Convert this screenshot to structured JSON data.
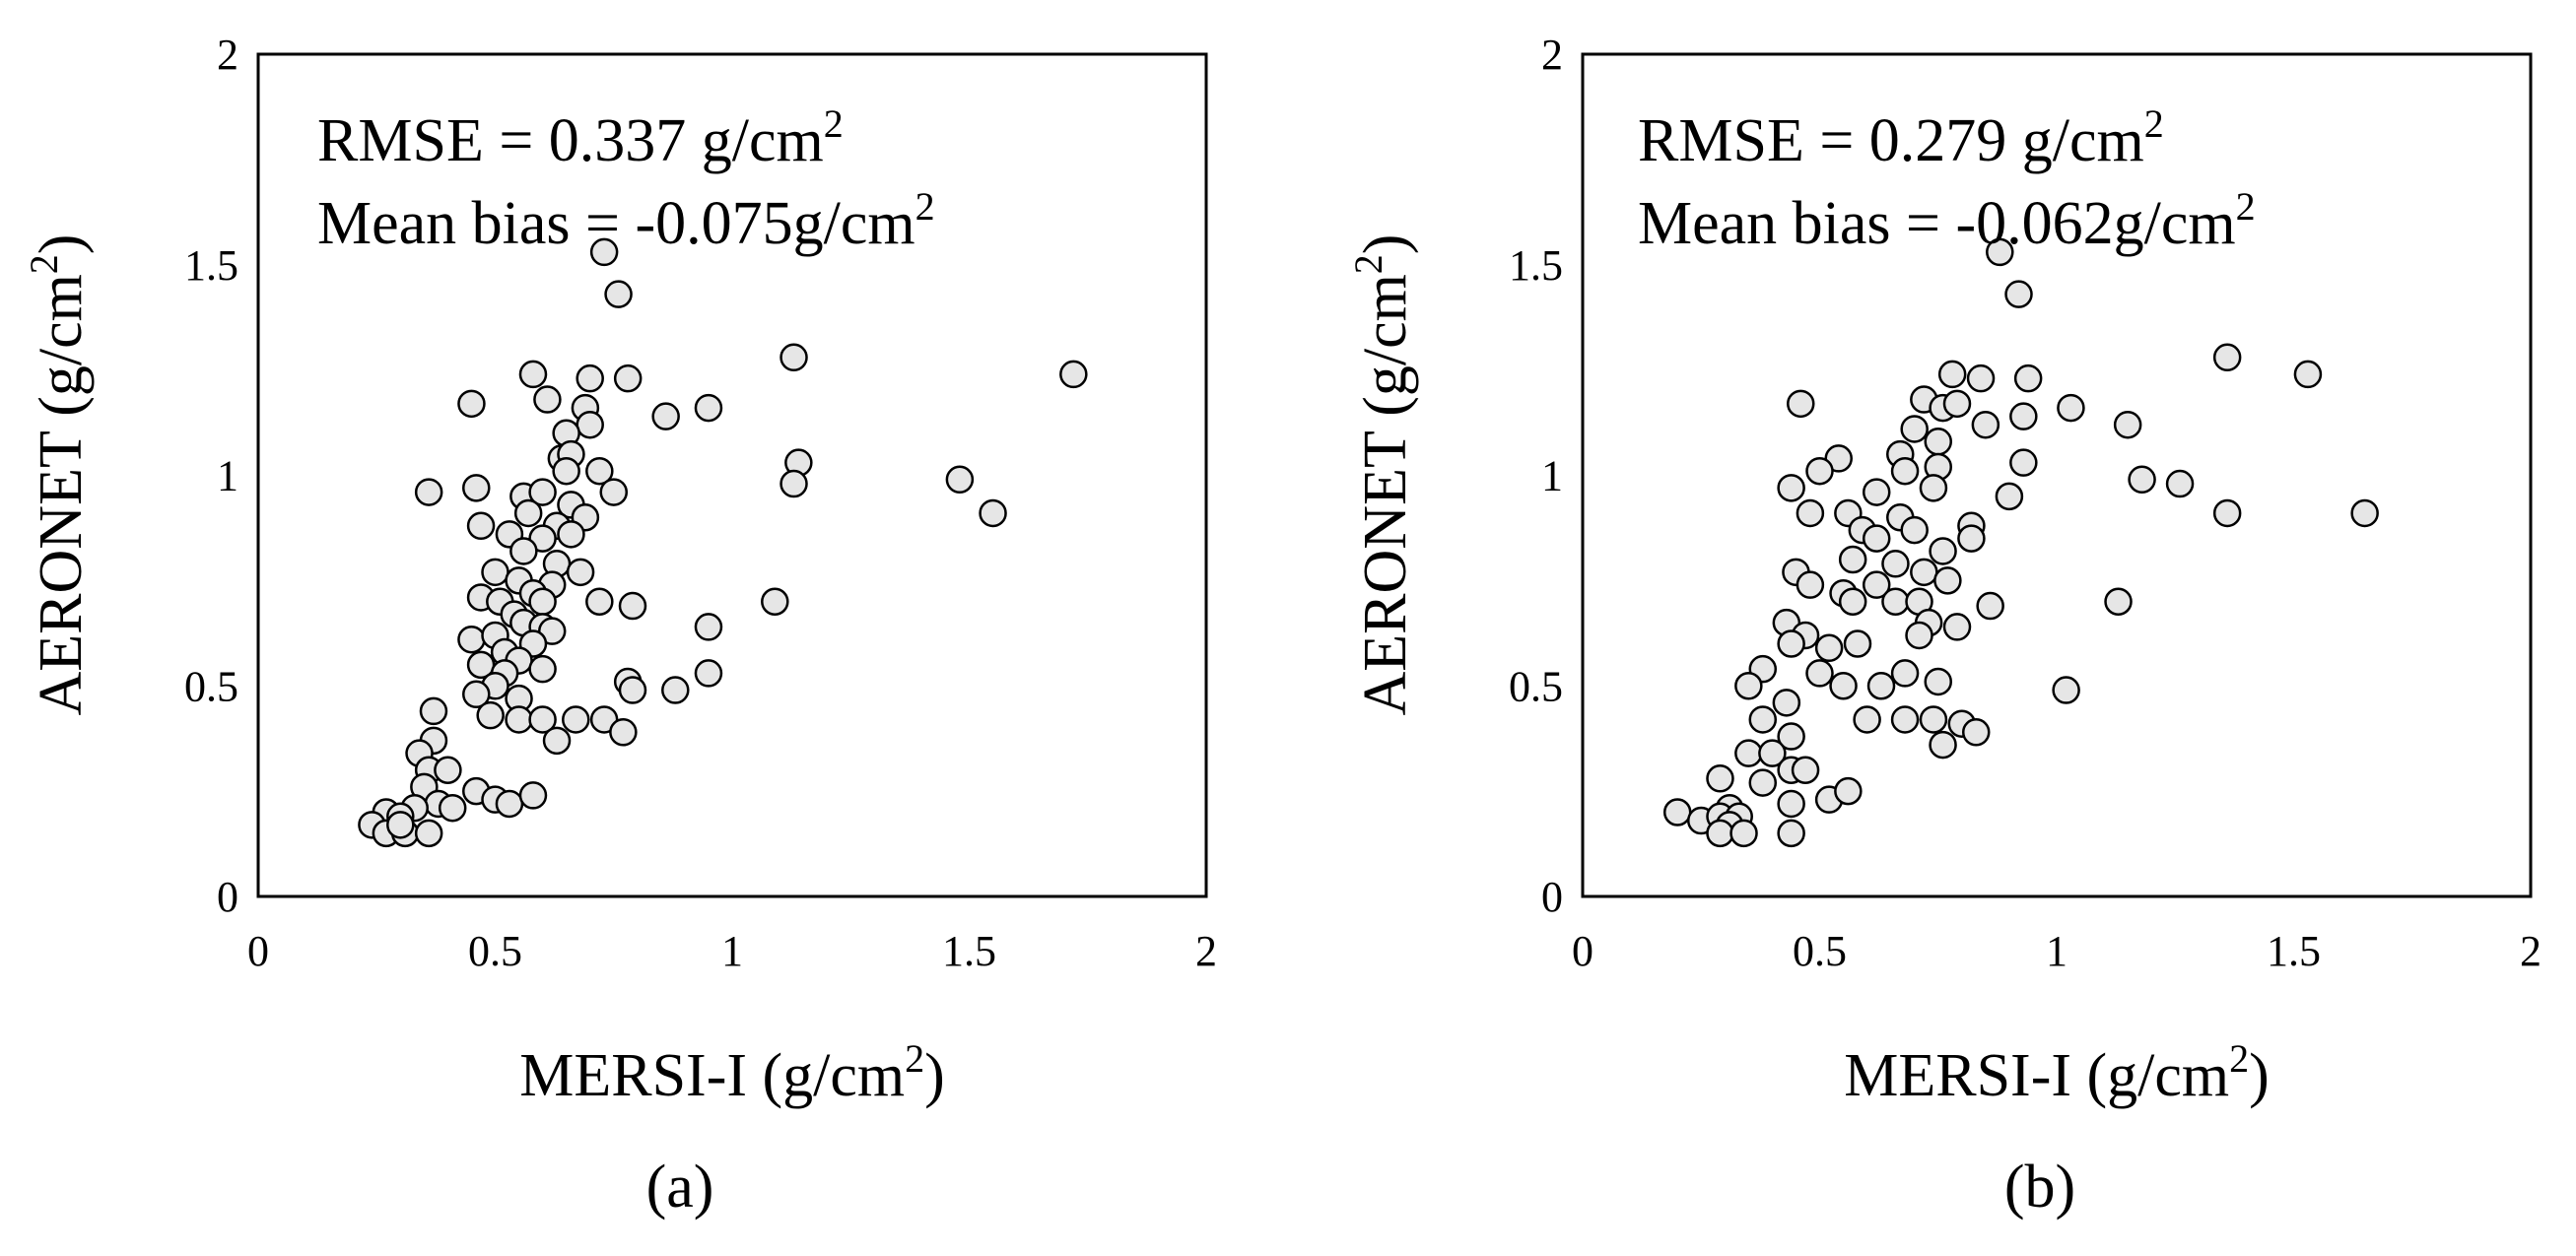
{
  "chart_data": [
    {
      "type": "scatter",
      "panel_label": "(a)",
      "annotations": {
        "rmse_text": "RMSE = 0.337 g/cm",
        "bias_text": "Mean bias = -0.075g/cm",
        "superscript": "2"
      },
      "xlabel": "MERSI-I (g/cm",
      "ylabel": "AERONET (g/cm",
      "label_close": ")",
      "label_sup": "2",
      "xlim": [
        0,
        2
      ],
      "ylim": [
        0,
        2
      ],
      "xticks": [
        0,
        0.5,
        1,
        1.5,
        2
      ],
      "yticks": [
        0,
        0.5,
        1,
        1.5,
        2
      ],
      "xtick_labels": [
        "0",
        "0.5",
        "1",
        "1.5",
        "2"
      ],
      "ytick_labels": [
        "0",
        "0.5",
        "1",
        "1.5",
        "2"
      ],
      "grid": false,
      "marker_fill": "#e6e6e6",
      "marker_edge": "#000000",
      "points": [
        [
          0.73,
          1.53
        ],
        [
          0.76,
          1.43
        ],
        [
          0.58,
          1.24
        ],
        [
          0.7,
          1.23
        ],
        [
          0.78,
          1.23
        ],
        [
          1.72,
          1.24
        ],
        [
          1.13,
          1.28
        ],
        [
          0.45,
          1.17
        ],
        [
          0.61,
          1.18
        ],
        [
          0.69,
          1.16
        ],
        [
          0.95,
          1.16
        ],
        [
          0.86,
          1.14
        ],
        [
          0.7,
          1.12
        ],
        [
          0.65,
          1.1
        ],
        [
          0.64,
          1.04
        ],
        [
          1.14,
          1.03
        ],
        [
          0.66,
          1.05
        ],
        [
          0.72,
          1.01
        ],
        [
          0.65,
          1.01
        ],
        [
          1.13,
          0.98
        ],
        [
          1.48,
          0.99
        ],
        [
          0.36,
          0.96
        ],
        [
          0.46,
          0.97
        ],
        [
          0.56,
          0.95
        ],
        [
          0.6,
          0.96
        ],
        [
          0.75,
          0.96
        ],
        [
          0.66,
          0.93
        ],
        [
          1.55,
          0.91
        ],
        [
          0.57,
          0.91
        ],
        [
          0.69,
          0.9
        ],
        [
          0.47,
          0.88
        ],
        [
          0.63,
          0.88
        ],
        [
          0.53,
          0.86
        ],
        [
          0.6,
          0.85
        ],
        [
          0.66,
          0.86
        ],
        [
          0.56,
          0.82
        ],
        [
          0.63,
          0.79
        ],
        [
          0.5,
          0.77
        ],
        [
          0.55,
          0.75
        ],
        [
          0.68,
          0.77
        ],
        [
          0.62,
          0.74
        ],
        [
          0.58,
          0.72
        ],
        [
          0.47,
          0.71
        ],
        [
          0.51,
          0.7
        ],
        [
          0.6,
          0.7
        ],
        [
          0.72,
          0.7
        ],
        [
          0.79,
          0.69
        ],
        [
          1.09,
          0.7
        ],
        [
          0.54,
          0.67
        ],
        [
          0.56,
          0.65
        ],
        [
          0.6,
          0.64
        ],
        [
          0.62,
          0.63
        ],
        [
          0.95,
          0.64
        ],
        [
          0.45,
          0.61
        ],
        [
          0.5,
          0.62
        ],
        [
          0.58,
          0.6
        ],
        [
          0.52,
          0.58
        ],
        [
          0.55,
          0.56
        ],
        [
          0.47,
          0.55
        ],
        [
          0.6,
          0.54
        ],
        [
          0.52,
          0.53
        ],
        [
          0.95,
          0.53
        ],
        [
          0.78,
          0.51
        ],
        [
          0.79,
          0.49
        ],
        [
          0.88,
          0.49
        ],
        [
          0.5,
          0.5
        ],
        [
          0.46,
          0.48
        ],
        [
          0.55,
          0.47
        ],
        [
          0.49,
          0.43
        ],
        [
          0.55,
          0.42
        ],
        [
          0.6,
          0.42
        ],
        [
          0.67,
          0.42
        ],
        [
          0.73,
          0.42
        ],
        [
          0.77,
          0.39
        ],
        [
          0.63,
          0.37
        ],
        [
          0.37,
          0.44
        ],
        [
          0.37,
          0.37
        ],
        [
          0.34,
          0.34
        ],
        [
          0.36,
          0.3
        ],
        [
          0.4,
          0.3
        ],
        [
          0.35,
          0.26
        ],
        [
          0.46,
          0.25
        ],
        [
          0.38,
          0.22
        ],
        [
          0.41,
          0.21
        ],
        [
          0.5,
          0.23
        ],
        [
          0.53,
          0.22
        ],
        [
          0.58,
          0.24
        ],
        [
          0.33,
          0.21
        ],
        [
          0.27,
          0.2
        ],
        [
          0.3,
          0.19
        ],
        [
          0.24,
          0.17
        ],
        [
          0.27,
          0.15
        ],
        [
          0.31,
          0.15
        ],
        [
          0.36,
          0.15
        ],
        [
          0.3,
          0.17
        ]
      ]
    },
    {
      "type": "scatter",
      "panel_label": "(b)",
      "annotations": {
        "rmse_text": "RMSE = 0.279 g/cm",
        "bias_text": "Mean bias = -0.062g/cm",
        "superscript": "2"
      },
      "xlabel": "MERSI-I (g/cm",
      "ylabel": "AERONET (g/cm",
      "label_close": ")",
      "label_sup": "2",
      "xlim": [
        0,
        2
      ],
      "ylim": [
        0,
        2
      ],
      "xticks": [
        0,
        0.5,
        1,
        1.5,
        2
      ],
      "yticks": [
        0,
        0.5,
        1,
        1.5,
        2
      ],
      "xtick_labels": [
        "0",
        "0.5",
        "1",
        "1.5",
        "2"
      ],
      "ytick_labels": [
        "0",
        "0.5",
        "1",
        "1.5",
        "2"
      ],
      "grid": false,
      "marker_fill": "#e6e6e6",
      "marker_edge": "#000000",
      "points": [
        [
          0.88,
          1.53
        ],
        [
          0.92,
          1.43
        ],
        [
          1.36,
          1.28
        ],
        [
          1.53,
          1.24
        ],
        [
          0.78,
          1.24
        ],
        [
          0.84,
          1.23
        ],
        [
          0.94,
          1.23
        ],
        [
          0.72,
          1.18
        ],
        [
          0.76,
          1.16
        ],
        [
          0.79,
          1.17
        ],
        [
          0.46,
          1.17
        ],
        [
          1.03,
          1.16
        ],
        [
          0.93,
          1.14
        ],
        [
          0.85,
          1.12
        ],
        [
          1.15,
          1.12
        ],
        [
          0.7,
          1.11
        ],
        [
          0.75,
          1.08
        ],
        [
          0.54,
          1.04
        ],
        [
          0.67,
          1.05
        ],
        [
          0.68,
          1.01
        ],
        [
          0.75,
          1.02
        ],
        [
          0.93,
          1.03
        ],
        [
          0.5,
          1.01
        ],
        [
          1.18,
          0.99
        ],
        [
          1.26,
          0.98
        ],
        [
          0.44,
          0.97
        ],
        [
          0.74,
          0.97
        ],
        [
          0.62,
          0.96
        ],
        [
          0.9,
          0.95
        ],
        [
          1.36,
          0.91
        ],
        [
          1.65,
          0.91
        ],
        [
          0.48,
          0.91
        ],
        [
          0.56,
          0.91
        ],
        [
          0.67,
          0.9
        ],
        [
          0.7,
          0.87
        ],
        [
          0.82,
          0.88
        ],
        [
          0.59,
          0.87
        ],
        [
          0.62,
          0.85
        ],
        [
          0.82,
          0.85
        ],
        [
          0.76,
          0.82
        ],
        [
          0.57,
          0.8
        ],
        [
          0.66,
          0.79
        ],
        [
          0.72,
          0.77
        ],
        [
          0.45,
          0.77
        ],
        [
          0.48,
          0.74
        ],
        [
          0.62,
          0.74
        ],
        [
          0.77,
          0.75
        ],
        [
          0.55,
          0.72
        ],
        [
          0.57,
          0.7
        ],
        [
          0.66,
          0.7
        ],
        [
          0.71,
          0.7
        ],
        [
          0.86,
          0.69
        ],
        [
          1.13,
          0.7
        ],
        [
          0.73,
          0.65
        ],
        [
          0.79,
          0.64
        ],
        [
          0.43,
          0.65
        ],
        [
          0.47,
          0.62
        ],
        [
          0.44,
          0.6
        ],
        [
          0.52,
          0.59
        ],
        [
          0.58,
          0.6
        ],
        [
          0.71,
          0.62
        ],
        [
          0.38,
          0.54
        ],
        [
          0.5,
          0.53
        ],
        [
          0.68,
          0.53
        ],
        [
          0.35,
          0.5
        ],
        [
          0.55,
          0.5
        ],
        [
          0.63,
          0.5
        ],
        [
          0.75,
          0.51
        ],
        [
          1.02,
          0.49
        ],
        [
          0.43,
          0.46
        ],
        [
          0.38,
          0.42
        ],
        [
          0.6,
          0.42
        ],
        [
          0.68,
          0.42
        ],
        [
          0.74,
          0.42
        ],
        [
          0.8,
          0.41
        ],
        [
          0.83,
          0.39
        ],
        [
          0.44,
          0.38
        ],
        [
          0.76,
          0.36
        ],
        [
          0.35,
          0.34
        ],
        [
          0.4,
          0.34
        ],
        [
          0.44,
          0.3
        ],
        [
          0.47,
          0.3
        ],
        [
          0.38,
          0.27
        ],
        [
          0.52,
          0.23
        ],
        [
          0.56,
          0.25
        ],
        [
          0.44,
          0.22
        ],
        [
          0.31,
          0.21
        ],
        [
          0.2,
          0.2
        ],
        [
          0.25,
          0.18
        ],
        [
          0.29,
          0.19
        ],
        [
          0.33,
          0.19
        ],
        [
          0.31,
          0.17
        ],
        [
          0.29,
          0.15
        ],
        [
          0.34,
          0.15
        ],
        [
          0.44,
          0.15
        ],
        [
          0.29,
          0.28
        ]
      ]
    }
  ]
}
